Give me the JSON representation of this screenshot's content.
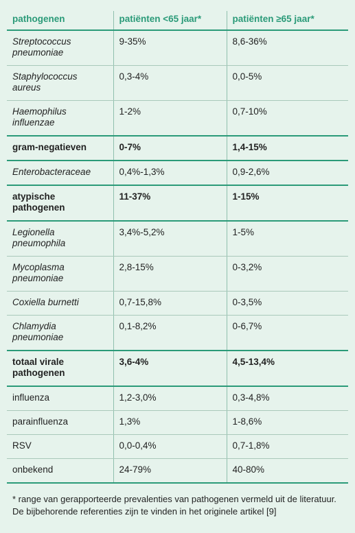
{
  "table": {
    "header": [
      "pathogenen",
      "patiënten <65 jaar*",
      "patiënten ≥65 jaar*"
    ],
    "rows": [
      {
        "style": "italic",
        "cells": [
          "Streptococcus pneumoniae",
          "9-35%",
          "8,6-36%"
        ]
      },
      {
        "style": "italic",
        "cells": [
          "Staphylococcus aureus",
          "0,3-4%",
          "0,0-5%"
        ]
      },
      {
        "style": "italic",
        "cells": [
          "Haemophilus influenzae",
          "1-2%",
          "0,7-10%"
        ]
      },
      {
        "style": "bold",
        "cells": [
          "gram-negatieven",
          "0-7%",
          "1,4-15%"
        ]
      },
      {
        "style": "italic",
        "cells": [
          "Enterobacteraceae",
          "0,4%-1,3%",
          "0,9-2,6%"
        ]
      },
      {
        "style": "bold",
        "cells": [
          "atypische pathogenen",
          "11-37%",
          "1-15%"
        ]
      },
      {
        "style": "italic",
        "cells": [
          "Legionella pneumophila",
          "3,4%-5,2%",
          "1-5%"
        ]
      },
      {
        "style": "italic",
        "cells": [
          "Mycoplasma pneumoniae",
          "2,8-15%",
          "0-3,2%"
        ]
      },
      {
        "style": "italic",
        "cells": [
          "Coxiella burnetti",
          "0,7-15,8%",
          "0-3,5%"
        ]
      },
      {
        "style": "italic",
        "cells": [
          "Chlamydia pneumoniae",
          "0,1-8,2%",
          "0-6,7%"
        ]
      },
      {
        "style": "bold",
        "cells": [
          "totaal virale pathogenen",
          "3,6-4%",
          "4,5-13,4%"
        ]
      },
      {
        "style": "normal",
        "cells": [
          "influenza",
          "1,2-3,0%",
          "0,3-4,8%"
        ]
      },
      {
        "style": "normal",
        "cells": [
          "parainfluenza",
          "1,3%",
          "1-8,6%"
        ]
      },
      {
        "style": "normal",
        "cells": [
          "RSV",
          "0,0-0,4%",
          "0,7-1,8%"
        ]
      },
      {
        "style": "normal",
        "cells": [
          "onbekend",
          "24-79%",
          "40-80%"
        ]
      }
    ]
  },
  "footnote": "* range van gerapporteerde prevalenties van pathogenen vermeld uit de literatuur. De bijbehorende referenties zijn te vinden in het originele artikel [9]"
}
